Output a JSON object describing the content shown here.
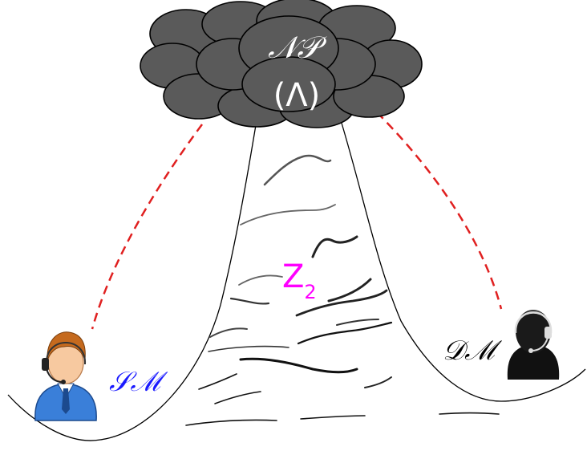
{
  "diagram": {
    "cloud": {
      "label_top": "𝒩𝒫",
      "label_bottom": "(Λ)",
      "color": "#5a5a5a",
      "outline": "#000000"
    },
    "valley": {
      "label": "Z",
      "subscript": "2",
      "color": "#ff00ff"
    },
    "left_agent": {
      "label": "𝒮ℳ",
      "color": "#1a1aff",
      "icon": "support-agent-icon"
    },
    "right_agent": {
      "label": "𝒟ℳ",
      "color": "#000000",
      "icon": "dark-agent-icon"
    },
    "connector_color": "#e02020"
  }
}
